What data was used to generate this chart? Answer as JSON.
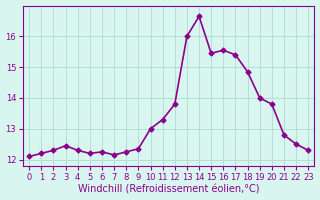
{
  "x": [
    0,
    1,
    2,
    3,
    4,
    5,
    6,
    7,
    8,
    9,
    10,
    11,
    12,
    13,
    14,
    15,
    16,
    17,
    18,
    19,
    20,
    21,
    22,
    23
  ],
  "y": [
    12.1,
    12.2,
    12.3,
    12.45,
    12.3,
    12.2,
    12.25,
    12.15,
    12.25,
    12.35,
    13.0,
    13.3,
    13.8,
    16.0,
    16.65,
    15.45,
    15.55,
    15.4,
    14.85,
    14.0,
    13.8,
    12.8,
    12.5,
    12.3
  ],
  "line_color": "#8B008B",
  "marker": "D",
  "marker_size": 2.5,
  "bg_color": "#d8f5f0",
  "grid_color": "#b0e0d8",
  "xlabel": "Windchill (Refroidissement éolien,°C)",
  "xlabel_color": "#8B008B",
  "ylim": [
    11.8,
    17.0
  ],
  "xlim": [
    -0.5,
    23.5
  ],
  "yticks": [
    12,
    13,
    14,
    15,
    16
  ],
  "xticks": [
    0,
    1,
    2,
    3,
    4,
    5,
    6,
    7,
    8,
    9,
    10,
    11,
    12,
    13,
    14,
    15,
    16,
    17,
    18,
    19,
    20,
    21,
    22,
    23
  ],
  "tick_color": "#8B008B",
  "tick_fontsize": 6,
  "xlabel_fontsize": 7,
  "linewidth": 1.2
}
